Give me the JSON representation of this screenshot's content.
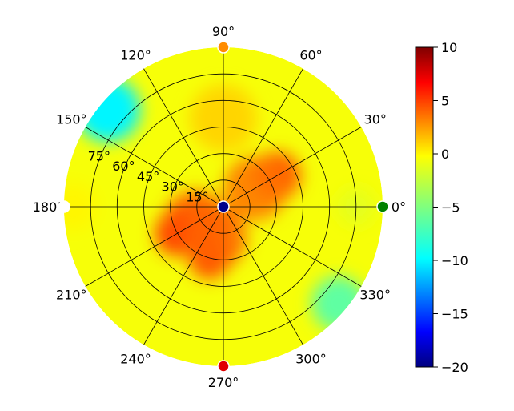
{
  "chart_data": {
    "type": "heatmap",
    "projection": "polar",
    "title": "",
    "theta_tick_labels": [
      "0°",
      "30°",
      "60°",
      "90°",
      "120°",
      "150°",
      "180°",
      "210°",
      "240°",
      "270°",
      "300°",
      "330°"
    ],
    "theta_ticks_deg": [
      0,
      30,
      60,
      90,
      120,
      150,
      180,
      210,
      240,
      270,
      300,
      330
    ],
    "radial_tick_labels": [
      "15°",
      "30°",
      "45°",
      "60°",
      "75°"
    ],
    "radial_ticks_deg": [
      15,
      30,
      45,
      60,
      75
    ],
    "radial_range_deg": [
      0,
      90
    ],
    "grid": true,
    "colormap": "jet",
    "colorbar": {
      "min": -20,
      "max": 10,
      "tick_labels": [
        "10",
        "5",
        "0",
        "−5",
        "−10",
        "−15",
        "−20"
      ],
      "tick_values": [
        10,
        5,
        0,
        -5,
        -10,
        -15,
        -20
      ],
      "position": "right"
    },
    "field_samples": [
      {
        "theta_deg": 0,
        "r_deg": 0,
        "value": -20
      },
      {
        "theta_deg": 30,
        "r_deg": 35,
        "value": 3.5
      },
      {
        "theta_deg": 210,
        "r_deg": 30,
        "value": 4.5
      },
      {
        "theta_deg": 255,
        "r_deg": 30,
        "value": 4
      },
      {
        "theta_deg": 90,
        "r_deg": 50,
        "value": 0
      },
      {
        "theta_deg": 0,
        "r_deg": 75,
        "value": -2
      },
      {
        "theta_deg": 140,
        "r_deg": 85,
        "value": -9
      },
      {
        "theta_deg": 320,
        "r_deg": 85,
        "value": -6
      },
      {
        "theta_deg": 180,
        "r_deg": 85,
        "value": -1
      }
    ],
    "markers": [
      {
        "theta_deg": 0,
        "r_deg": 90,
        "color": "#008000"
      },
      {
        "theta_deg": 90,
        "r_deg": 90,
        "color": "#ff8c00"
      },
      {
        "theta_deg": 180,
        "r_deg": 90,
        "color": "#ffffff"
      },
      {
        "theta_deg": 270,
        "r_deg": 90,
        "color": "#e00000"
      },
      {
        "theta_deg": 0,
        "r_deg": 0,
        "color": "#00008b"
      }
    ]
  }
}
